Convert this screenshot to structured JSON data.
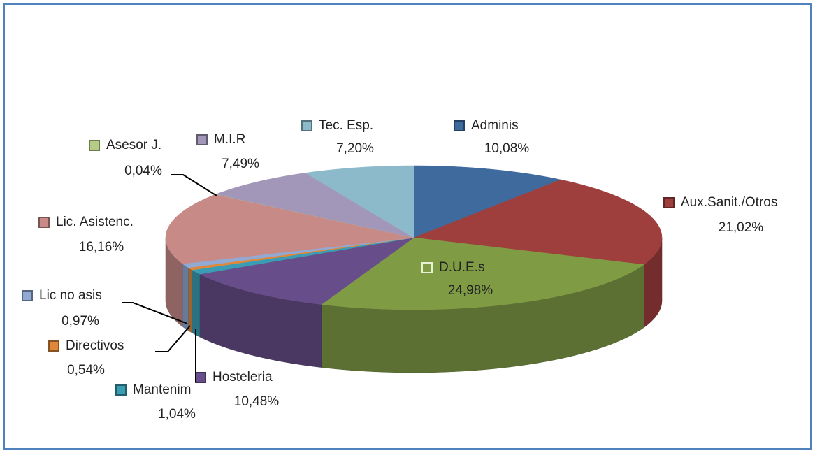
{
  "chart_data": {
    "type": "pie3d",
    "categories": [
      "Adminis",
      "Aux.Sanit./Otros",
      "D.U.E.s",
      "Hosteleria",
      "Mantenim",
      "Directivos",
      "Lic no asis",
      "Lic. Asistenc.",
      "Asesor J.",
      "M.I.R",
      "Tec. Esp."
    ],
    "values": [
      10.08,
      21.02,
      24.98,
      10.48,
      1.04,
      0.54,
      0.97,
      16.16,
      0.04,
      7.49,
      7.2
    ],
    "value_labels": [
      "10,08%",
      "21,02%",
      "24,98%",
      "10,48%",
      "1,04%",
      "0,54%",
      "0,97%",
      "16,16%",
      "0,04%",
      "7,49%",
      "7,20%"
    ],
    "colors": [
      "#3f6a9e",
      "#9e3f3d",
      "#7f9c45",
      "#674e8a",
      "#3a9db3",
      "#e0883a",
      "#92a9d3",
      "#c78a87",
      "#b4cc85",
      "#a397b9",
      "#8dbacb"
    ]
  }
}
